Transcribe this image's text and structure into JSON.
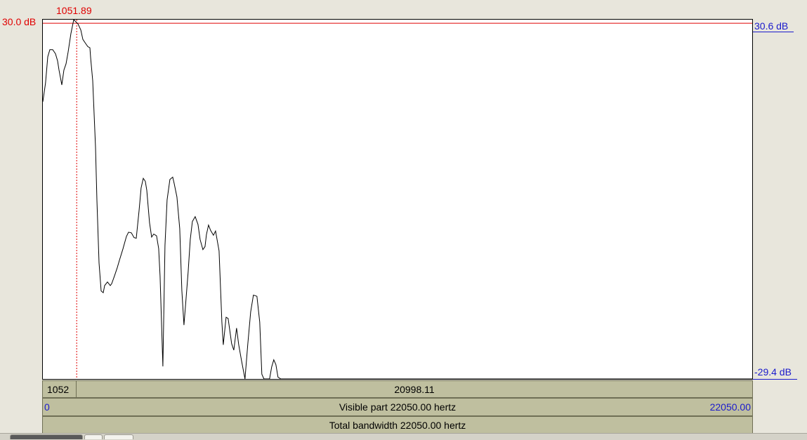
{
  "cursor": {
    "frequency_label": "1051.89",
    "left_value_label": "1052",
    "right_value_label": "20998.11"
  },
  "y_axis": {
    "left_top_label": "30.0 dB",
    "right_top_label": "30.6 dB",
    "right_bottom_label": "-29.4 dB"
  },
  "x_axis": {
    "min_label": "0",
    "max_label": "22050.00",
    "visible_label": "Visible part 22050.00 hertz",
    "total_label": "Total bandwidth 22050.00 hertz"
  },
  "colors": {
    "cursor": "#e00000",
    "axis_blue": "#1a1acc",
    "bar_fill": "#bfbf9f",
    "spectrum_line": "#000000"
  },
  "chart_data": {
    "type": "line",
    "xlabel": "",
    "ylabel": "",
    "x_unit": "Hz",
    "y_unit": "dB",
    "xlim": [
      0,
      22050
    ],
    "ylim": [
      -29.4,
      30.6
    ],
    "cursor_x": 1051.89,
    "cursor_y": 30.0,
    "series": [
      {
        "x": [
          0,
          84,
          153,
          218,
          306,
          393,
          458,
          502,
          589,
          655,
          720,
          786,
          873,
          960,
          1091,
          1179,
          1244,
          1331,
          1397,
          1462,
          1484,
          1550,
          1637,
          1681,
          1746,
          1812,
          1877,
          1921,
          2008,
          2095,
          2139,
          2226,
          2314,
          2379,
          2488,
          2597,
          2663,
          2750,
          2837,
          2903,
          2990,
          3055,
          3121,
          3186,
          3230,
          3317,
          3382,
          3448,
          3535,
          3601,
          3644,
          3732,
          3797,
          3862,
          3950,
          4037,
          4081,
          4168,
          4255,
          4321,
          4386,
          4452,
          4517,
          4582,
          4648,
          4735,
          4822,
          4888,
          4975,
          5040,
          5084,
          5150,
          5215,
          5302,
          5368,
          5477,
          5564,
          5608,
          5695,
          5760,
          5869,
          5935,
          6022,
          6088,
          6175,
          6284,
          6371,
          6459,
          6546,
          6655,
          6742,
          6807,
          6873,
          6960,
          7047,
          7113,
          7178,
          7244,
          7309,
          7396,
          7462,
          7549,
          7614,
          7680,
          7767,
          7833,
          7964,
          8030,
          8117,
          8139,
          8226,
          8335,
          8444,
          8510,
          8597,
          8684,
          8771,
          8837,
          8902,
          9011,
          9120,
          22050
        ],
        "y": [
          16.9,
          20.0,
          24.4,
          25.6,
          25.6,
          24.9,
          23.7,
          22.2,
          19.7,
          22.2,
          23.2,
          25.2,
          28.3,
          30.6,
          29.9,
          28.9,
          27.3,
          26.6,
          26.1,
          25.9,
          24.3,
          20.4,
          9.3,
          0.4,
          -10.0,
          -14.7,
          -15.0,
          -13.8,
          -13.2,
          -13.8,
          -13.5,
          -12.2,
          -10.8,
          -9.6,
          -7.7,
          -5.6,
          -4.9,
          -5.0,
          -5.8,
          -5.9,
          -1.3,
          2.5,
          4.1,
          3.6,
          2.1,
          -3.3,
          -5.7,
          -5.2,
          -5.5,
          -7.6,
          -12.2,
          -27.3,
          -7.1,
          0.5,
          3.9,
          4.3,
          3.3,
          1.0,
          -4.3,
          -14.6,
          -20.4,
          -16.0,
          -11.5,
          -6.1,
          -3.1,
          -2.3,
          -3.6,
          -6.1,
          -7.8,
          -7.3,
          -5.3,
          -3.7,
          -4.6,
          -5.4,
          -4.7,
          -8.0,
          -19.9,
          -23.7,
          -19.1,
          -19.3,
          -23.5,
          -24.6,
          -20.9,
          -23.7,
          -26.3,
          -29.4,
          -23.6,
          -18.2,
          -15.4,
          -15.6,
          -19.9,
          -28.6,
          -29.4,
          -29.4,
          -29.4,
          -27.4,
          -26.2,
          -27.0,
          -29.1,
          -29.4,
          -29.4,
          -29.4,
          -29.4,
          -29.4,
          -29.4,
          -29.4,
          -29.4,
          -29.4,
          -29.4,
          -29.4,
          -29.4,
          -29.4,
          -29.4,
          -29.4,
          -29.4,
          -29.4,
          -29.4,
          -29.4,
          -29.4,
          -29.4,
          -29.4,
          -29.4
        ]
      }
    ]
  }
}
